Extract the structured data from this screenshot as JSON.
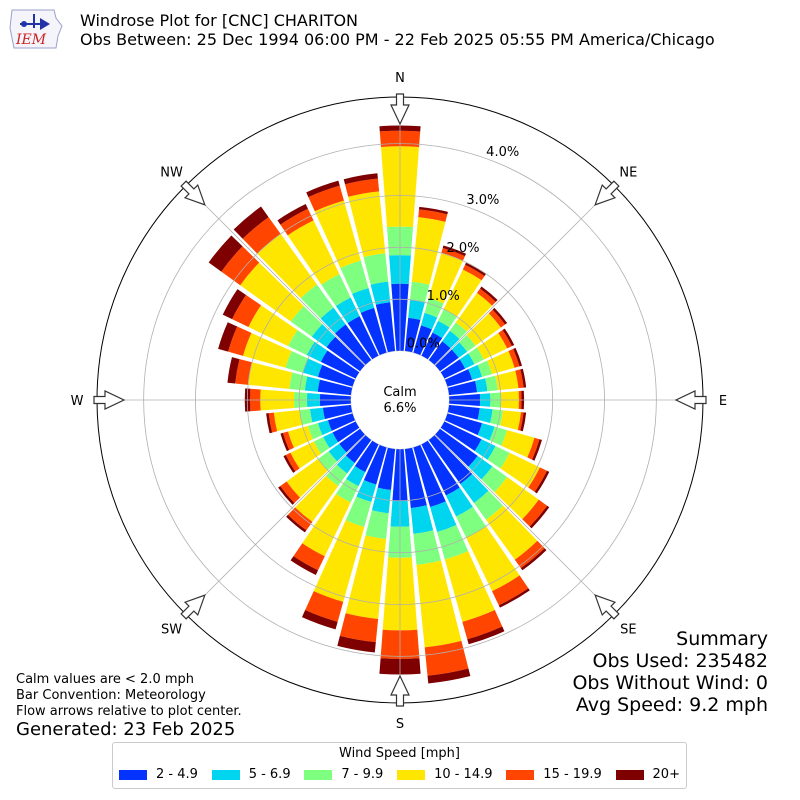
{
  "header": {
    "title": "Windrose Plot for [CNC] CHARITON",
    "subtitle": "Obs Between: 25 Dec 1994 06:00 PM - 22 Feb 2025 05:55 PM America/Chicago",
    "logo_text": "IEM"
  },
  "summary": {
    "heading": "Summary",
    "obs_used": "Obs Used: 235482",
    "obs_without_wind": "Obs Without Wind: 0",
    "avg_speed": "Avg Speed: 9.2 mph"
  },
  "notes": {
    "calm_note": "Calm values are < 2.0 mph",
    "bar_convention": "Bar Convention: Meteorology",
    "flow_note": "Flow arrows relative to plot center.",
    "generated": "Generated: 23 Feb 2025"
  },
  "chart_data": {
    "type": "windrose",
    "calm_label": "Calm",
    "calm_value": "6.6%",
    "direction_labels": [
      "N",
      "NE",
      "E",
      "SE",
      "S",
      "SW",
      "W",
      "NW"
    ],
    "radial_ticks": [
      "0.0%",
      "1.0%",
      "2.0%",
      "3.0%",
      "4.0%"
    ],
    "radial_tick_values": [
      0,
      1,
      2,
      3,
      4
    ],
    "rmax": 4.9,
    "legend_title": "Wind Speed [mph]",
    "bins": [
      "2 - 4.9",
      "5 - 6.9",
      "7 - 9.9",
      "10 - 14.9",
      "15 - 19.9",
      "20+"
    ],
    "colors": [
      "#0433ff",
      "#00d5f0",
      "#7fff7f",
      "#ffe600",
      "#ff4500",
      "#7f0000"
    ],
    "grid": true,
    "sectors": [
      {
        "dir": 0,
        "cum": [
          1.3,
          1.85,
          2.4,
          3.95,
          4.25,
          4.35
        ]
      },
      {
        "dir": 10,
        "cum": [
          0.65,
          1.0,
          1.35,
          2.6,
          2.75,
          2.8
        ]
      },
      {
        "dir": 20,
        "cum": [
          0.55,
          0.8,
          1.1,
          2.0,
          2.1,
          2.15
        ]
      },
      {
        "dir": 30,
        "cum": [
          0.5,
          0.75,
          1.0,
          1.85,
          1.95,
          2.0
        ]
      },
      {
        "dir": 40,
        "cum": [
          0.45,
          0.7,
          0.9,
          1.6,
          1.7,
          1.75
        ]
      },
      {
        "dir": 50,
        "cum": [
          0.45,
          0.65,
          0.85,
          1.45,
          1.55,
          1.6
        ]
      },
      {
        "dir": 60,
        "cum": [
          0.45,
          0.65,
          0.85,
          1.35,
          1.45,
          1.5
        ]
      },
      {
        "dir": 70,
        "cum": [
          0.5,
          0.7,
          0.9,
          1.35,
          1.45,
          1.5
        ]
      },
      {
        "dir": 80,
        "cum": [
          0.55,
          0.75,
          0.95,
          1.35,
          1.45,
          1.5
        ]
      },
      {
        "dir": 90,
        "cum": [
          0.6,
          0.8,
          1.0,
          1.35,
          1.4,
          1.45
        ]
      },
      {
        "dir": 100,
        "cum": [
          0.6,
          0.85,
          1.05,
          1.4,
          1.45,
          1.5
        ]
      },
      {
        "dir": 110,
        "cum": [
          0.7,
          0.95,
          1.2,
          1.75,
          1.85,
          1.9
        ]
      },
      {
        "dir": 120,
        "cum": [
          0.8,
          1.1,
          1.4,
          2.05,
          2.2,
          2.25
        ]
      },
      {
        "dir": 130,
        "cum": [
          0.9,
          1.25,
          1.6,
          2.35,
          2.55,
          2.6
        ]
      },
      {
        "dir": 140,
        "cum": [
          1.05,
          1.5,
          1.9,
          2.85,
          3.05,
          3.1
        ]
      },
      {
        "dir": 150,
        "cum": [
          1.1,
          1.55,
          2.0,
          3.15,
          3.45,
          3.5
        ]
      },
      {
        "dir": 160,
        "cum": [
          1.2,
          1.7,
          2.25,
          3.5,
          3.85,
          3.95
        ]
      },
      {
        "dir": 170,
        "cum": [
          1.15,
          1.65,
          2.25,
          3.85,
          4.4,
          4.55
        ]
      },
      {
        "dir": 180,
        "cum": [
          1.0,
          1.5,
          2.1,
          3.5,
          4.05,
          4.35
        ]
      },
      {
        "dir": 190,
        "cum": [
          0.8,
          1.25,
          1.75,
          3.3,
          3.75,
          3.95
        ]
      },
      {
        "dir": 200,
        "cum": [
          0.75,
          1.1,
          1.6,
          3.1,
          3.5,
          3.65
        ]
      },
      {
        "dir": 210,
        "cum": [
          0.6,
          0.9,
          1.25,
          2.4,
          2.7,
          2.8
        ]
      },
      {
        "dir": 220,
        "cum": [
          0.55,
          0.8,
          1.1,
          1.95,
          2.15,
          2.2
        ]
      },
      {
        "dir": 230,
        "cum": [
          0.5,
          0.75,
          1.0,
          1.75,
          1.9,
          1.95
        ]
      },
      {
        "dir": 240,
        "cum": [
          0.5,
          0.7,
          0.9,
          1.4,
          1.5,
          1.55
        ]
      },
      {
        "dir": 250,
        "cum": [
          0.5,
          0.7,
          0.9,
          1.3,
          1.4,
          1.45
        ]
      },
      {
        "dir": 260,
        "cum": [
          0.55,
          0.8,
          1.0,
          1.5,
          1.6,
          1.65
        ]
      },
      {
        "dir": 270,
        "cum": [
          0.6,
          0.85,
          1.1,
          1.75,
          1.95,
          2.05
        ]
      },
      {
        "dir": 280,
        "cum": [
          0.65,
          0.9,
          1.2,
          2.0,
          2.25,
          2.4
        ]
      },
      {
        "dir": 290,
        "cum": [
          0.7,
          1.0,
          1.35,
          2.2,
          2.5,
          2.7
        ]
      },
      {
        "dir": 300,
        "cum": [
          0.75,
          1.05,
          1.45,
          2.3,
          2.65,
          2.85
        ]
      },
      {
        "dir": 310,
        "cum": [
          0.8,
          1.15,
          1.65,
          2.85,
          3.3,
          3.6
        ]
      },
      {
        "dir": 320,
        "cum": [
          0.85,
          1.25,
          1.8,
          3.0,
          3.4,
          3.65
        ]
      },
      {
        "dir": 330,
        "cum": [
          0.85,
          1.25,
          1.75,
          2.9,
          3.15,
          3.25
        ]
      },
      {
        "dir": 340,
        "cum": [
          0.9,
          1.3,
          1.85,
          3.05,
          3.35,
          3.45
        ]
      },
      {
        "dir": 350,
        "cum": [
          0.95,
          1.35,
          1.9,
          3.1,
          3.35,
          3.45
        ]
      }
    ]
  }
}
